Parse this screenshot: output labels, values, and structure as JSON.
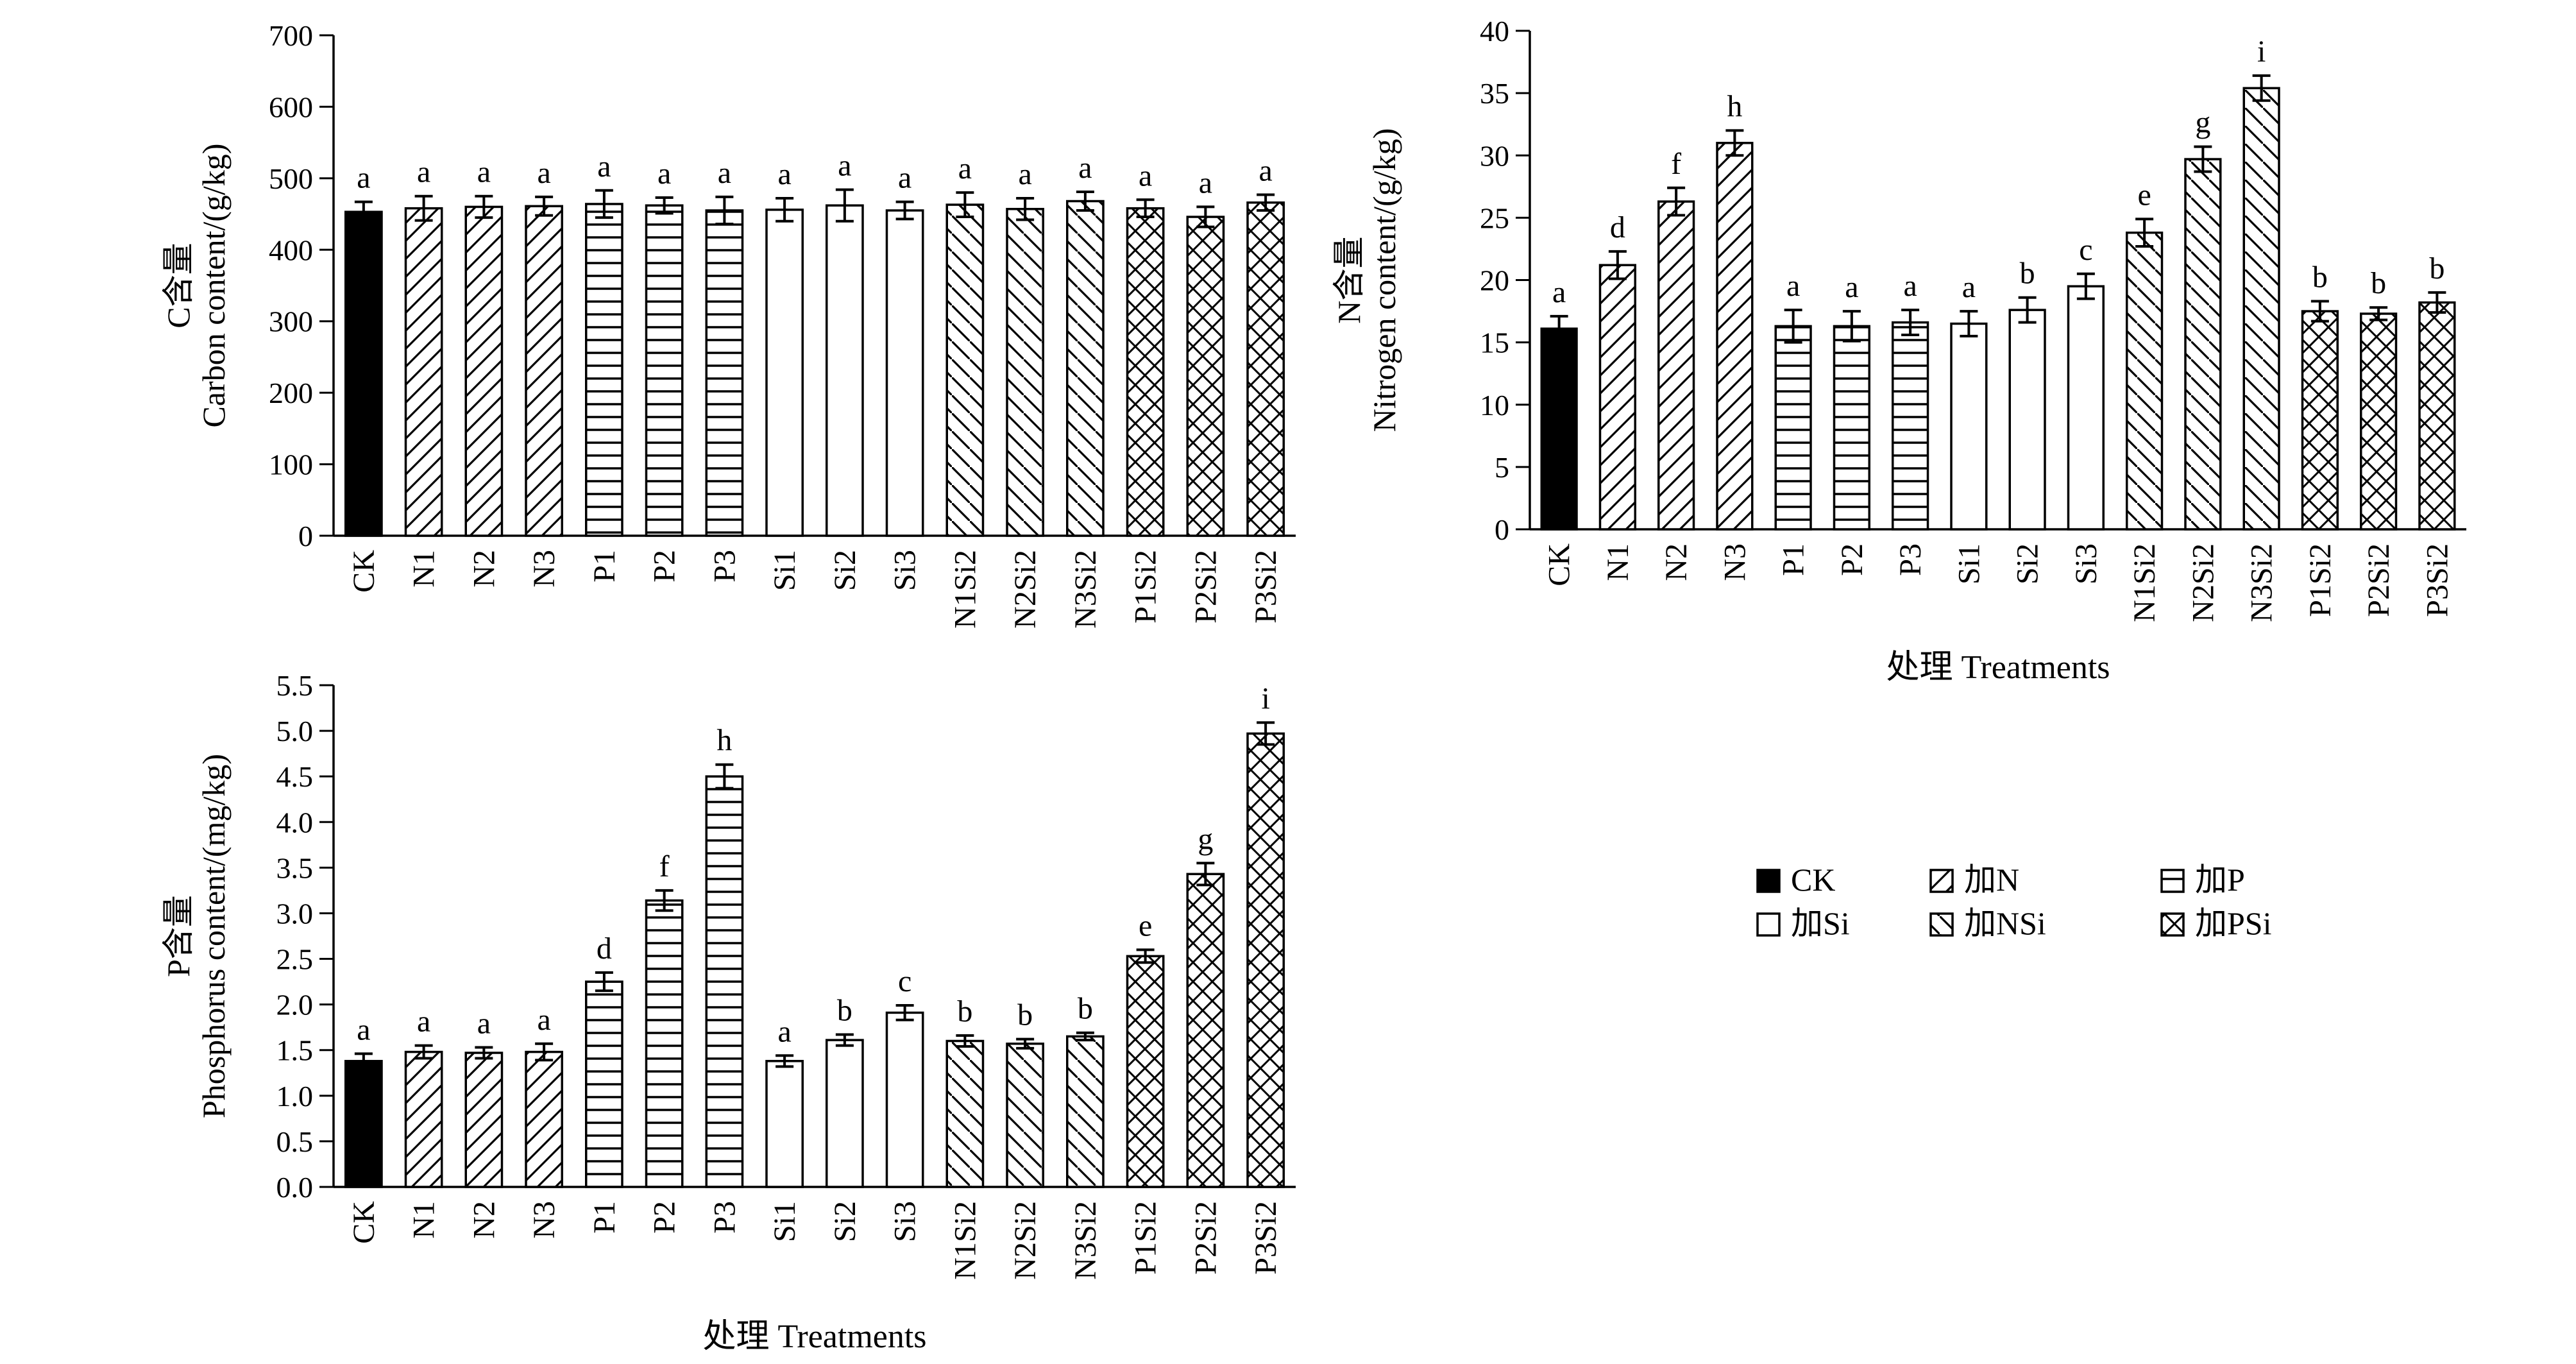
{
  "treatments": [
    "CK",
    "N1",
    "N2",
    "N3",
    "P1",
    "P2",
    "P3",
    "Si1",
    "Si2",
    "Si3",
    "N1Si2",
    "N2Si2",
    "N3Si2",
    "P1Si2",
    "P2Si2",
    "P3Si2"
  ],
  "groups": [
    "ck",
    "n",
    "n",
    "n",
    "p",
    "p",
    "p",
    "si",
    "si",
    "si",
    "nsi",
    "nsi",
    "nsi",
    "psi",
    "psi",
    "psi"
  ],
  "legend": [
    {
      "group": "ck",
      "label": "CK"
    },
    {
      "group": "n",
      "label": "加N"
    },
    {
      "group": "p",
      "label": "加P"
    },
    {
      "group": "si",
      "label": "加Si"
    },
    {
      "group": "nsi",
      "label": "加NSi"
    },
    {
      "group": "psi",
      "label": "加PSi"
    }
  ],
  "chart_data": [
    {
      "id": "carbon",
      "type": "bar",
      "ylabel_cn": "C含量",
      "ylabel_en": "Carbon content/(g/kg)",
      "xlabel": "",
      "ylim": [
        0,
        700
      ],
      "yticks": [
        0,
        100,
        200,
        300,
        400,
        500,
        600,
        700
      ],
      "tick_decimals": 0,
      "values": [
        453,
        458,
        460,
        461,
        464,
        462,
        455,
        456,
        462,
        455,
        463,
        457,
        468,
        458,
        446,
        466
      ],
      "errors": [
        14,
        17,
        15,
        13,
        19,
        11,
        19,
        16,
        22,
        12,
        17,
        15,
        13,
        12,
        14,
        11
      ],
      "letters": [
        "a",
        "a",
        "a",
        "a",
        "a",
        "a",
        "a",
        "a",
        "a",
        "a",
        "a",
        "a",
        "a",
        "a",
        "a",
        "a"
      ]
    },
    {
      "id": "nitrogen",
      "type": "bar",
      "ylabel_cn": "N含量",
      "ylabel_en": "Nitrogen content/(g/kg)",
      "xlabel": "处理  Treatments",
      "ylim": [
        0,
        40
      ],
      "yticks": [
        0,
        5,
        10,
        15,
        20,
        25,
        30,
        35,
        40
      ],
      "tick_decimals": 0,
      "values": [
        16.1,
        21.2,
        26.3,
        31.0,
        16.3,
        16.3,
        16.6,
        16.5,
        17.6,
        19.5,
        23.8,
        29.7,
        35.4,
        17.5,
        17.3,
        18.2
      ],
      "errors": [
        1.0,
        1.1,
        1.1,
        1.0,
        1.3,
        1.2,
        1.0,
        1.0,
        1.0,
        1.0,
        1.1,
        1.0,
        1.0,
        0.8,
        0.5,
        0.8
      ],
      "letters": [
        "a",
        "d",
        "f",
        "h",
        "a",
        "a",
        "a",
        "a",
        "b",
        "c",
        "e",
        "g",
        "i",
        "b",
        "b",
        "b"
      ]
    },
    {
      "id": "phosphorus",
      "type": "bar",
      "ylabel_cn": "P含量",
      "ylabel_en": "Phosphorus content/(mg/kg)",
      "xlabel": "处理  Treatments",
      "ylim": [
        0,
        5.5
      ],
      "yticks": [
        0,
        0.5,
        1.0,
        1.5,
        2.0,
        2.5,
        3.0,
        3.5,
        4.0,
        4.5,
        5.0,
        5.5
      ],
      "tick_decimals": 1,
      "values": [
        1.38,
        1.48,
        1.47,
        1.48,
        2.25,
        3.14,
        4.5,
        1.38,
        1.61,
        1.91,
        1.6,
        1.57,
        1.65,
        2.53,
        3.43,
        4.97
      ],
      "errors": [
        0.08,
        0.07,
        0.06,
        0.09,
        0.1,
        0.11,
        0.13,
        0.06,
        0.06,
        0.08,
        0.06,
        0.05,
        0.04,
        0.07,
        0.12,
        0.12
      ],
      "letters": [
        "a",
        "a",
        "a",
        "a",
        "d",
        "f",
        "h",
        "a",
        "b",
        "c",
        "b",
        "b",
        "b",
        "e",
        "g",
        "i"
      ]
    }
  ]
}
